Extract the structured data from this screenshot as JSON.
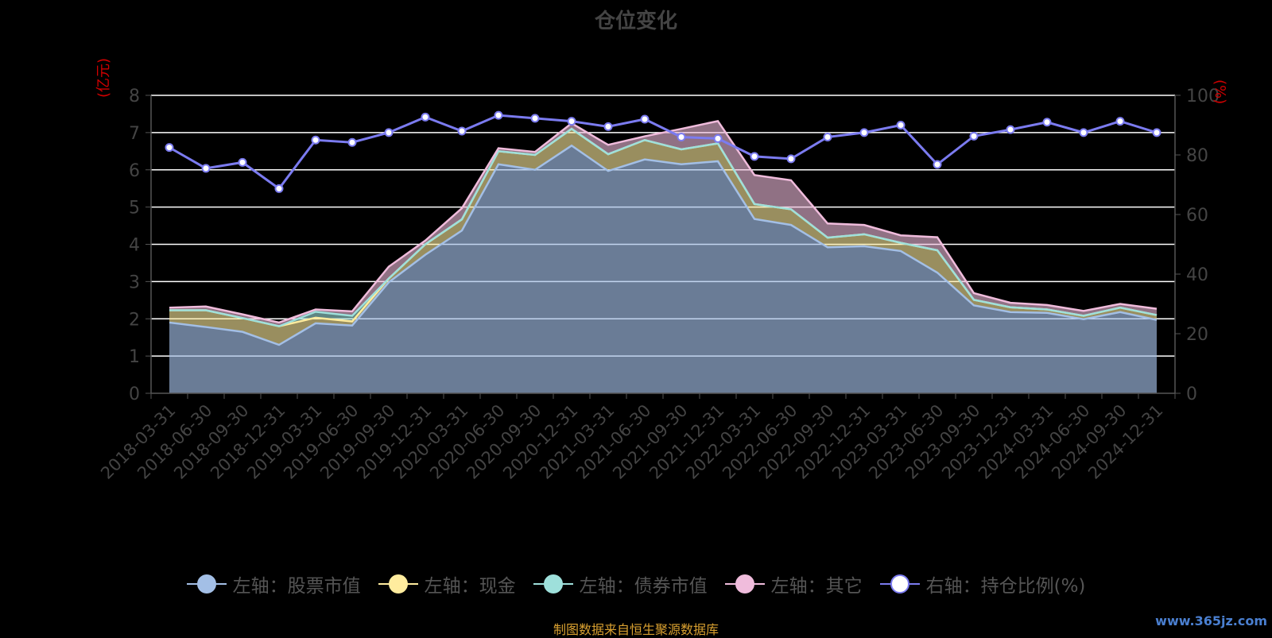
{
  "chart_data": {
    "type": "area",
    "title": "仓位变化",
    "ylabel_left": "(亿元)",
    "ylabel_right": "(%)",
    "ylim_left": [
      0,
      8
    ],
    "ylim_right": [
      0,
      100
    ],
    "yticks_left": [
      "0",
      "1",
      "2",
      "3",
      "4",
      "5",
      "6",
      "7",
      "8"
    ],
    "yticks_right": [
      "0",
      "20",
      "40",
      "60",
      "80",
      "100"
    ],
    "grid": true,
    "legend_position": "bottom",
    "categories": [
      "2018-03-31",
      "2018-06-30",
      "2018-09-30",
      "2018-12-31",
      "2019-03-31",
      "2019-06-30",
      "2019-09-30",
      "2019-12-31",
      "2020-03-31",
      "2020-06-30",
      "2020-09-30",
      "2020-12-31",
      "2021-03-31",
      "2021-06-30",
      "2021-09-30",
      "2021-12-31",
      "2022-03-31",
      "2022-06-30",
      "2022-09-30",
      "2022-12-31",
      "2023-03-31",
      "2023-06-30",
      "2023-09-30",
      "2023-12-31",
      "2024-03-31",
      "2024-06-30",
      "2024-09-30",
      "2024-12-31"
    ],
    "series": [
      {
        "name": "左轴：股票市值",
        "axis": "left",
        "stack": true,
        "values": [
          1.9,
          1.78,
          1.65,
          1.3,
          1.88,
          1.82,
          2.98,
          3.72,
          4.37,
          6.15,
          6.0,
          6.65,
          5.97,
          6.28,
          6.15,
          6.23,
          4.68,
          4.52,
          3.92,
          3.95,
          3.82,
          3.24,
          2.36,
          2.18,
          2.16,
          1.99,
          2.18,
          1.97
        ]
      },
      {
        "name": "左轴：现金",
        "axis": "left",
        "stack": true,
        "values": [
          0.33,
          0.45,
          0.37,
          0.5,
          0.15,
          0.11,
          0.1,
          0.28,
          0.3,
          0.35,
          0.4,
          0.45,
          0.45,
          0.52,
          0.4,
          0.48,
          0.4,
          0.42,
          0.26,
          0.32,
          0.22,
          0.6,
          0.15,
          0.13,
          0.09,
          0.09,
          0.12,
          0.13
        ]
      },
      {
        "name": "左轴：债券市值",
        "axis": "left",
        "stack": true,
        "values": [
          0,
          0,
          0,
          0,
          0.16,
          0.15,
          0,
          0,
          0,
          0,
          0,
          0,
          0,
          0,
          0,
          0,
          0,
          0,
          0,
          0,
          0,
          0,
          0,
          0,
          0,
          0,
          0,
          0
        ]
      },
      {
        "name": "左轴：其它",
        "axis": "left",
        "stack": true,
        "values": [
          0.07,
          0.1,
          0.1,
          0.1,
          0.06,
          0.12,
          0.32,
          0.1,
          0.3,
          0.08,
          0.08,
          0.15,
          0.25,
          0.1,
          0.55,
          0.6,
          0.78,
          0.78,
          0.38,
          0.25,
          0.2,
          0.35,
          0.18,
          0.12,
          0.12,
          0.13,
          0.1,
          0.17
        ]
      },
      {
        "name": "右轴：持仓比例(%)",
        "axis": "right",
        "stack": false,
        "values": [
          82.5,
          75.5,
          77.5,
          68.7,
          85,
          84.2,
          87.5,
          92.7,
          88,
          93.3,
          92.3,
          91.3,
          89.5,
          92,
          86,
          85.5,
          79.5,
          78.7,
          86,
          87.5,
          90,
          76.8,
          86.3,
          88.5,
          91,
          87.5,
          91.3,
          87.5
        ]
      }
    ]
  },
  "colors": {
    "stock": "#a3bfe6",
    "cash": "#ffec9e",
    "bond": "#9ee0db",
    "other": "#f0bcdc",
    "ratio": "#7b7bf0",
    "grid": "#ffffff",
    "axis_text": "#444444",
    "unit_text": "#d00000"
  },
  "legend": [
    {
      "label": "左轴：股票市值",
      "icon": "circle-icon",
      "color": "#a3bfe6"
    },
    {
      "label": "左轴：现金",
      "icon": "circle-icon",
      "color": "#ffec9e"
    },
    {
      "label": "左轴：债券市值",
      "icon": "circle-icon",
      "color": "#9ee0db"
    },
    {
      "label": "左轴：其它",
      "icon": "circle-icon",
      "color": "#f0bcdc"
    },
    {
      "label": "右轴：持仓比例(%)",
      "icon": "hollow-circle-icon",
      "color": "#7b7bf0"
    }
  ],
  "source": "制图数据来自恒生聚源数据库",
  "watermark": "www.365jz.com"
}
